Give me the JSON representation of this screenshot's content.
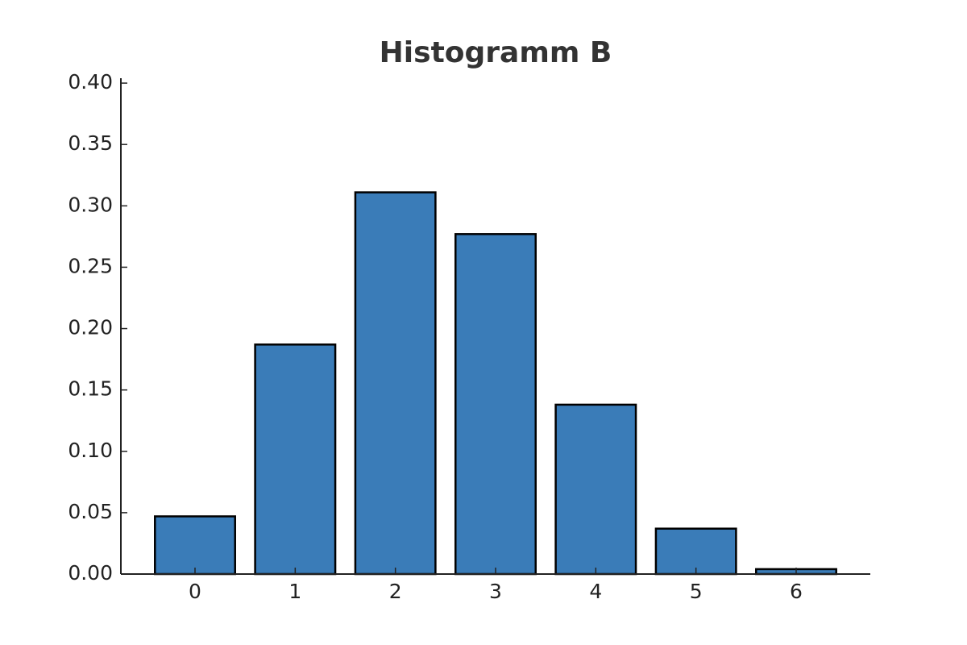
{
  "chart_data": {
    "type": "bar",
    "title": "Histogramm B",
    "categories": [
      "0",
      "1",
      "2",
      "3",
      "4",
      "5",
      "6"
    ],
    "values": [
      0.047,
      0.187,
      0.311,
      0.277,
      0.138,
      0.037,
      0.004
    ],
    "color": "#3a7cb8",
    "ylim": [
      0,
      0.404
    ],
    "yticks": [
      {
        "value": 0,
        "label": "0.00"
      },
      {
        "value": 0.05,
        "label": "0.05"
      },
      {
        "value": 0.1,
        "label": "0.10"
      },
      {
        "value": 0.15,
        "label": "0.15"
      },
      {
        "value": 0.2,
        "label": "0.20"
      },
      {
        "value": 0.25,
        "label": "0.25"
      },
      {
        "value": 0.3,
        "label": "0.30"
      },
      {
        "value": 0.35,
        "label": "0.35"
      },
      {
        "value": 0.4,
        "label": "0.40"
      }
    ],
    "grid": false
  }
}
